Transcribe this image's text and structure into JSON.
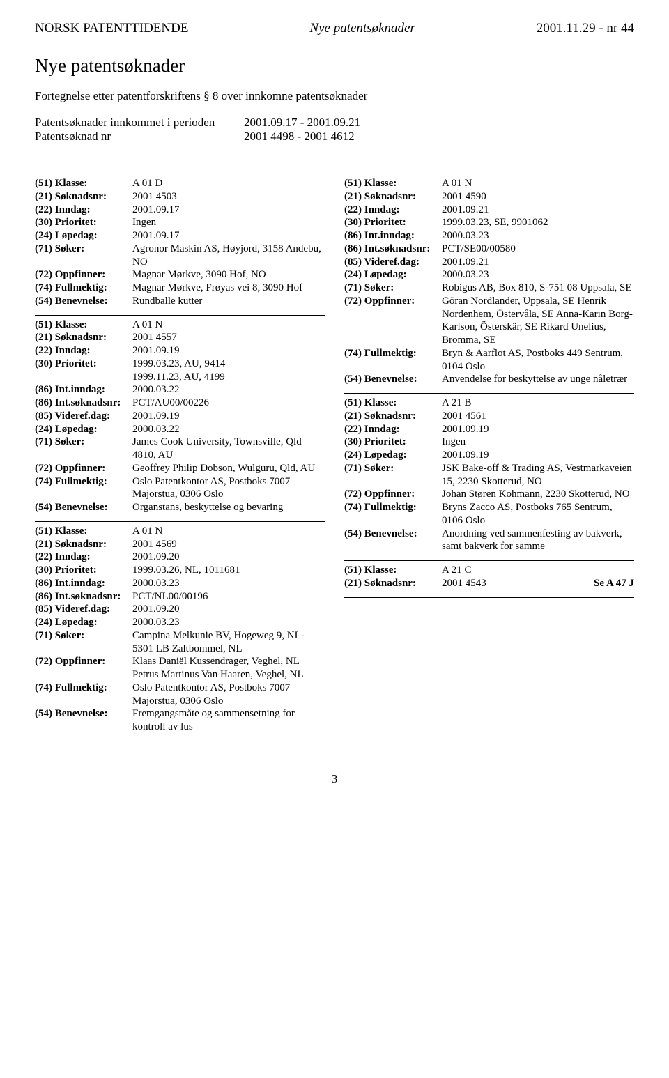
{
  "header": {
    "left": "NORSK PATENTTIDENDE",
    "center": "Nye patentsøknader",
    "right": "2001.11.29 - nr 44"
  },
  "title": "Nye patentsøknader",
  "subtitle": "Fortegnelse etter patentforskriftens § 8 over innkomne patentsøknader",
  "period": {
    "row1_label": "Patentsøknader innkommet i perioden",
    "row1_value": "2001.09.17 - 2001.09.21",
    "row2_label": "Patentsøknad nr",
    "row2_value": "2001 4498 - 2001 4612"
  },
  "leftColumn": [
    {
      "rows": [
        {
          "label": "(51) Klasse:",
          "value": "A 01 D"
        },
        {
          "label": "(21) Søknadsnr:",
          "value": "2001 4503"
        },
        {
          "label": "(22) Inndag:",
          "value": "2001.09.17"
        },
        {
          "label": "(30) Prioritet:",
          "value": "Ingen"
        },
        {
          "label": "(24) Løpedag:",
          "value": "2001.09.17"
        },
        {
          "label": "(71) Søker:",
          "value": "Agronor Maskin AS, Høyjord, 3158 Andebu, NO"
        },
        {
          "label": "(72) Oppfinner:",
          "value": "Magnar Mørkve, 3090 Hof, NO"
        },
        {
          "label": "(74) Fullmektig:",
          "value": "Magnar Mørkve, Frøyas vei 8, 3090 Hof"
        },
        {
          "label": "(54) Benevnelse:",
          "value": "Rundballe kutter"
        }
      ]
    },
    {
      "rows": [
        {
          "label": "(51) Klasse:",
          "value": "A 01 N"
        },
        {
          "label": "(21) Søknadsnr:",
          "value": "2001 4557"
        },
        {
          "label": "(22) Inndag:",
          "value": "2001.09.19"
        },
        {
          "label": "(30) Prioritet:",
          "value": "1999.03.23, AU, 9414"
        },
        {
          "label": "",
          "value": "1999.11.23, AU, 4199"
        },
        {
          "label": "(86) Int.inndag:",
          "value": "2000.03.22"
        },
        {
          "label": "(86) Int.søknadsnr:",
          "value": "PCT/AU00/00226"
        },
        {
          "label": "(85) Videref.dag:",
          "value": "2001.09.19"
        },
        {
          "label": "(24) Løpedag:",
          "value": "2000.03.22"
        },
        {
          "label": "(71) Søker:",
          "value": "James Cook University, Townsville, Qld 4810, AU"
        },
        {
          "label": "(72) Oppfinner:",
          "value": "Geoffrey Philip Dobson, Wulguru, Qld, AU"
        },
        {
          "label": "(74) Fullmektig:",
          "value": "Oslo Patentkontor AS, Postboks 7007 Majorstua, 0306 Oslo"
        },
        {
          "label": "(54) Benevnelse:",
          "value": "Organstans, beskyttelse og bevaring"
        }
      ]
    },
    {
      "rows": [
        {
          "label": "(51) Klasse:",
          "value": "A 01 N"
        },
        {
          "label": "(21) Søknadsnr:",
          "value": "2001 4569"
        },
        {
          "label": "(22) Inndag:",
          "value": "2001.09.20"
        },
        {
          "label": "(30) Prioritet:",
          "value": "1999.03.26, NL, 1011681"
        },
        {
          "label": "(86) Int.inndag:",
          "value": "2000.03.23"
        },
        {
          "label": "(86) Int.søknadsnr:",
          "value": "PCT/NL00/00196"
        },
        {
          "label": "(85) Videref.dag:",
          "value": "2001.09.20"
        },
        {
          "label": "(24) Løpedag:",
          "value": "2000.03.23"
        },
        {
          "label": "(71) Søker:",
          "value": "Campina Melkunie BV, Hogeweg 9, NL-5301 LB Zaltbommel, NL"
        },
        {
          "label": "(72) Oppfinner:",
          "value": "Klaas Daniël Kussendrager, Veghel, NL Petrus Martinus Van Haaren, Veghel, NL"
        },
        {
          "label": "(74) Fullmektig:",
          "value": "Oslo Patentkontor AS, Postboks 7007 Majorstua, 0306 Oslo"
        },
        {
          "label": "(54) Benevnelse:",
          "value": "Fremgangsmåte og sammensetning for kontroll av lus"
        }
      ]
    }
  ],
  "rightColumn": [
    {
      "rows": [
        {
          "label": "(51) Klasse:",
          "value": "A 01 N"
        },
        {
          "label": "(21) Søknadsnr:",
          "value": "2001 4590"
        },
        {
          "label": "(22) Inndag:",
          "value": "2001.09.21"
        },
        {
          "label": "(30) Prioritet:",
          "value": "1999.03.23, SE, 9901062"
        },
        {
          "label": "(86) Int.inndag:",
          "value": "2000.03.23"
        },
        {
          "label": "(86) Int.søknadsnr:",
          "value": "PCT/SE00/00580"
        },
        {
          "label": "(85) Videref.dag:",
          "value": "2001.09.21"
        },
        {
          "label": "(24) Løpedag:",
          "value": "2000.03.23"
        },
        {
          "label": "(71) Søker:",
          "value": "Robigus AB, Box 810, S-751 08 Uppsala, SE"
        },
        {
          "label": "(72) Oppfinner:",
          "value": "Göran Nordlander, Uppsala, SE Henrik Nordenhem, Östervåla, SE Anna-Karin Borg-Karlson, Österskär, SE Rikard Unelius, Bromma, SE"
        },
        {
          "label": "(74) Fullmektig:",
          "value": "Bryn & Aarflot AS, Postboks 449 Sentrum, 0104 Oslo"
        },
        {
          "label": "(54) Benevnelse:",
          "value": "Anvendelse for beskyttelse av unge nåletrær"
        }
      ]
    },
    {
      "rows": [
        {
          "label": "(51) Klasse:",
          "value": "A 21 B"
        },
        {
          "label": "(21) Søknadsnr:",
          "value": "2001 4561"
        },
        {
          "label": "(22) Inndag:",
          "value": "2001.09.19"
        },
        {
          "label": "(30) Prioritet:",
          "value": "Ingen"
        },
        {
          "label": "(24) Løpedag:",
          "value": "2001.09.19"
        },
        {
          "label": "(71) Søker:",
          "value": "JSK Bake-off & Trading AS, Vestmarkaveien 15, 2230 Skotterud, NO"
        },
        {
          "label": "(72) Oppfinner:",
          "value": "Johan Støren Kohmann, 2230 Skotterud, NO"
        },
        {
          "label": "(74) Fullmektig:",
          "value": "Bryns Zacco AS, Postboks 765 Sentrum, 0106 Oslo"
        },
        {
          "label": "(54) Benevnelse:",
          "value": "Anordning ved sammenfesting av bakverk, samt bakverk for samme"
        }
      ]
    },
    {
      "rows": [
        {
          "label": "(51) Klasse:",
          "value": "A 21 C"
        },
        {
          "label": "(21) Søknadsnr:",
          "value": "2001 4543",
          "extra": "Se A 47 J"
        }
      ]
    }
  ],
  "pageNumber": "3"
}
